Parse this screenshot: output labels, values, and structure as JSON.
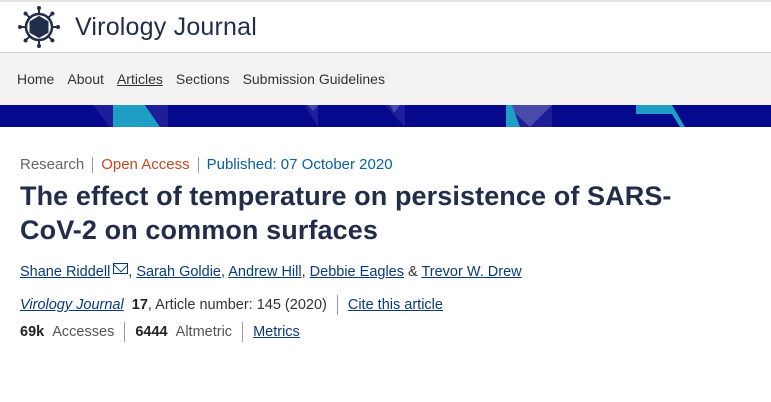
{
  "header": {
    "journal_name": "Virology Journal",
    "logo_icon": "virus-icon"
  },
  "nav": {
    "items": [
      {
        "label": "Home"
      },
      {
        "label": "About"
      },
      {
        "label": "Articles",
        "active": true
      },
      {
        "label": "Sections"
      },
      {
        "label": "Submission Guidelines"
      }
    ]
  },
  "article": {
    "type": "Research",
    "access": "Open Access",
    "published": "Published: 07 October 2020",
    "title": "The effect of temperature on persistence of SARS-CoV-2 on common surfaces",
    "authors": [
      "Shane Riddell",
      "Sarah Goldie",
      "Andrew Hill",
      "Debbie Eagles",
      "Trevor W. Drew"
    ],
    "author_sep": ", ",
    "author_amp": " & ",
    "journal": "Virology Journal",
    "volume": "17",
    "article_number": ", Article number: 145 (2020)",
    "cite_label": "Cite this article",
    "accesses": "69k",
    "accesses_label": "Accesses",
    "altmetric": "6444",
    "altmetric_label": "Altmetric",
    "metrics_label": "Metrics"
  },
  "colors": {
    "banner": "#050a8c",
    "title": "#222d4a",
    "open_access": "#c9461f",
    "published": "#0a5ea8"
  }
}
